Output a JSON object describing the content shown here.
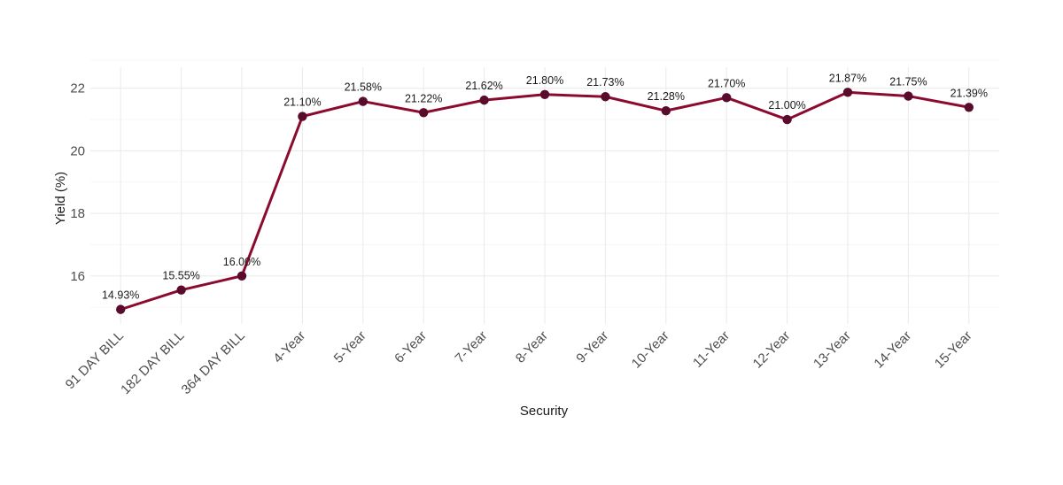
{
  "chart_data": {
    "type": "line",
    "title": "",
    "xlabel": "Security",
    "ylabel": "Yield (%)",
    "categories": [
      "91 DAY BILL",
      "182 DAY BILL",
      "364 DAY BILL",
      "4-Year",
      "5-Year",
      "6-Year",
      "7-Year",
      "8-Year",
      "9-Year",
      "10-Year",
      "11-Year",
      "12-Year",
      "13-Year",
      "14-Year",
      "15-Year"
    ],
    "values": [
      14.93,
      15.55,
      16.0,
      21.1,
      21.58,
      21.22,
      21.62,
      21.8,
      21.73,
      21.28,
      21.7,
      21.0,
      21.87,
      21.75,
      21.39
    ],
    "data_labels": [
      "14.93%",
      "15.55%",
      "16.00%",
      "21.10%",
      "21.58%",
      "21.22%",
      "21.62%",
      "21.80%",
      "21.73%",
      "21.28%",
      "21.70%",
      "21.00%",
      "21.87%",
      "21.75%",
      "21.39%"
    ],
    "yticks": [
      16,
      18,
      20,
      22
    ],
    "ylim": [
      14.6,
      22.9
    ],
    "grid": true,
    "legend": "none",
    "colors": {
      "line": "#8b0a2e",
      "point": "#5a0a2a"
    }
  }
}
